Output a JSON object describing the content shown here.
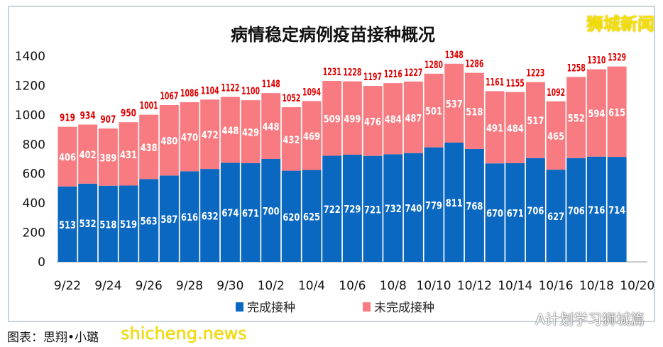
{
  "watermarks": {
    "top_right": "狮城新闻",
    "bottom_left": "shicheng.news",
    "bottom_right": "A计划学习狮城篇"
  },
  "credit": "图表：思翔•小璐",
  "chart_data": {
    "type": "bar",
    "stacked": true,
    "title": "病情稳定病例疫苗接种概况",
    "categories": [
      "9/22",
      "9/23",
      "9/24",
      "9/25",
      "9/26",
      "9/27",
      "9/28",
      "9/29",
      "9/30",
      "10/1",
      "10/2",
      "10/3",
      "10/4",
      "10/5",
      "10/6",
      "10/7",
      "10/8",
      "10/9",
      "10/10",
      "10/11",
      "10/12",
      "10/13",
      "10/14",
      "10/15",
      "10/16",
      "10/17",
      "10/18",
      "10/19"
    ],
    "x_tick_labels": [
      "9/22",
      "9/24",
      "9/26",
      "9/28",
      "9/30",
      "10/2",
      "10/4",
      "10/6",
      "10/8",
      "10/10",
      "10/12",
      "10/14",
      "10/16",
      "10/18",
      "10/20"
    ],
    "series": [
      {
        "name": "完成接种",
        "color": "#0a68c0",
        "values": [
          513,
          532,
          518,
          519,
          563,
          587,
          616,
          632,
          674,
          671,
          700,
          620,
          625,
          722,
          729,
          721,
          732,
          740,
          779,
          811,
          768,
          670,
          671,
          706,
          627,
          706,
          716,
          714
        ]
      },
      {
        "name": "未完成接种",
        "color": "#f77b80",
        "values": [
          406,
          402,
          389,
          431,
          438,
          480,
          470,
          472,
          448,
          429,
          448,
          432,
          469,
          509,
          499,
          476,
          484,
          487,
          501,
          537,
          518,
          491,
          484,
          517,
          465,
          552,
          594,
          615
        ]
      }
    ],
    "totals": [
      919,
      934,
      907,
      950,
      1001,
      1067,
      1086,
      1104,
      1122,
      1100,
      1148,
      1052,
      1094,
      1231,
      1228,
      1197,
      1216,
      1227,
      1280,
      1348,
      1286,
      1161,
      1155,
      1223,
      1092,
      1258,
      1310,
      1329
    ],
    "total_label_color": "#e00000",
    "ylim": [
      0,
      1400
    ],
    "y_ticks": [
      0,
      200,
      400,
      600,
      800,
      1000,
      1200,
      1400
    ],
    "grid": false,
    "legend": "bottom"
  }
}
